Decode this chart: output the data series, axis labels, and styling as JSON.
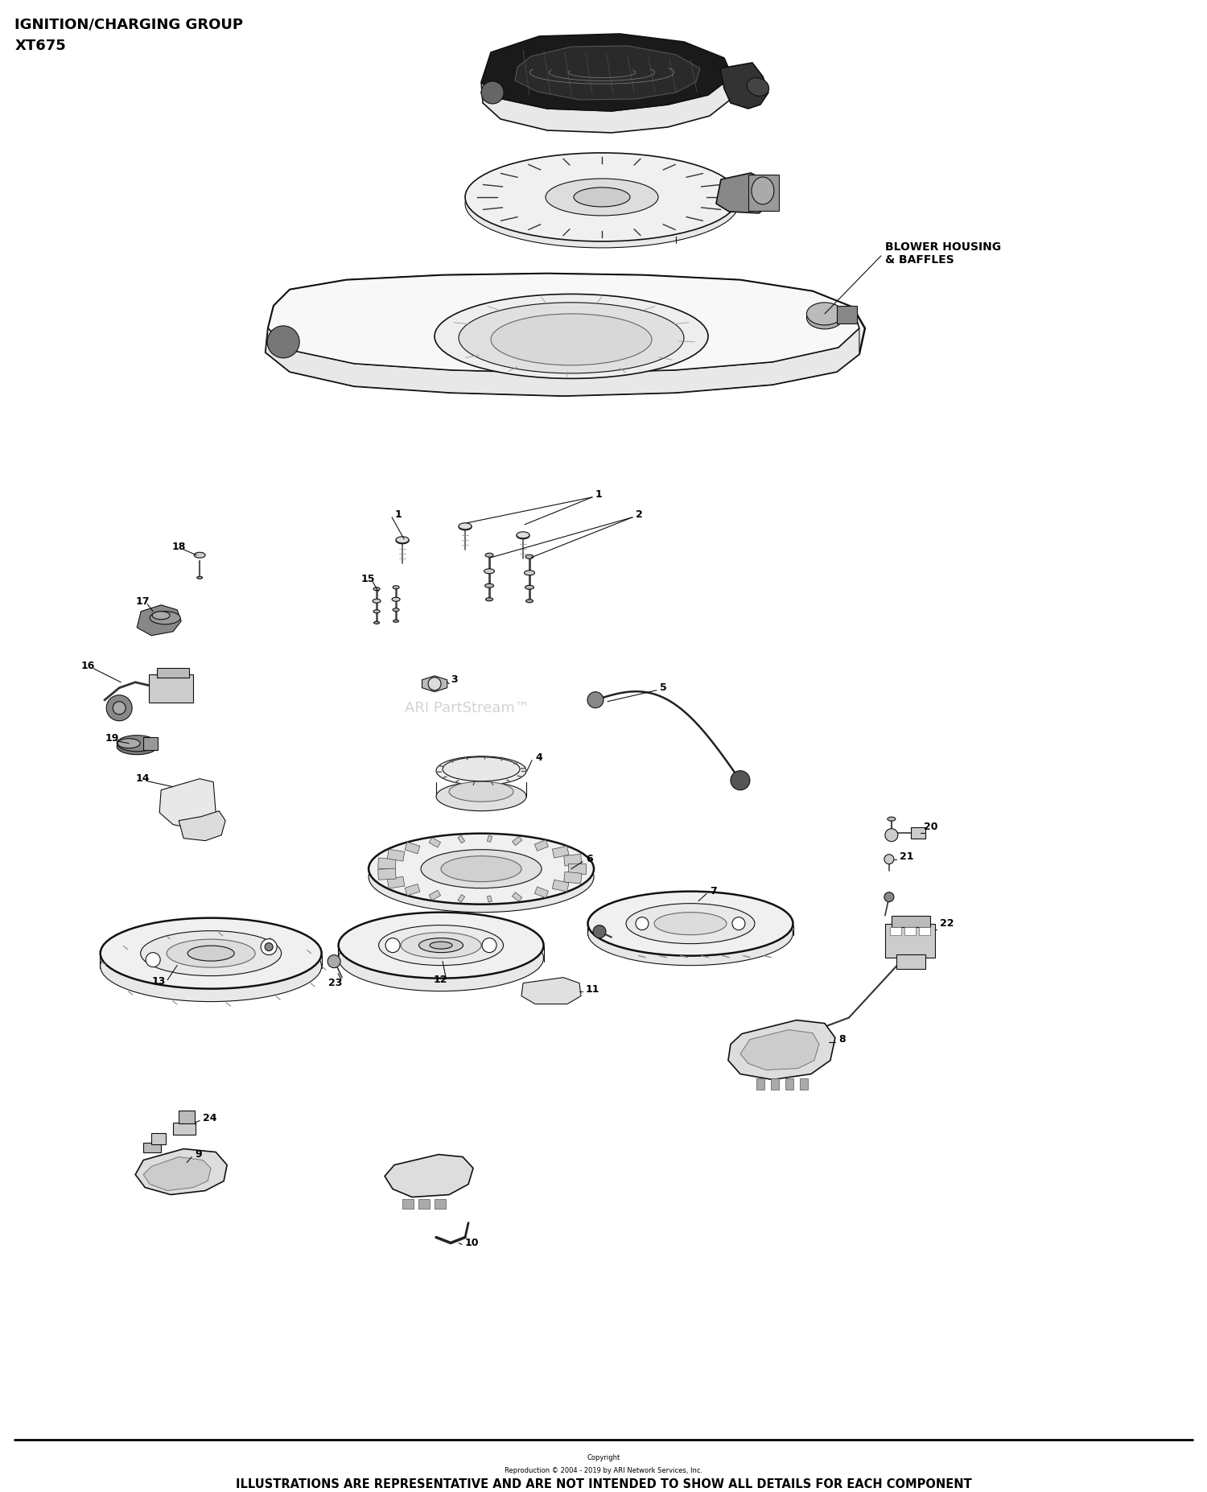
{
  "title_line1": "IGNITION/CHARGING GROUP",
  "title_line2": "XT675",
  "blower_label": "BLOWER HOUSING\n& BAFFLES",
  "watermark": "ARI PartStream™",
  "footer_copyright1": "Copyright",
  "footer_copyright2": "Reproduction © 2004 - 2019 by ARI Network Services, Inc.",
  "footer_text": "ILLUSTRATIONS ARE REPRESENTATIVE AND ARE NOT INTENDED TO SHOW ALL DETAILS FOR EACH COMPONENT",
  "bg_color": "#ffffff",
  "lc": "#111111",
  "lc2": "#444444",
  "gray1": "#cccccc",
  "gray2": "#888888",
  "gray3": "#555555",
  "darkgray": "#222222"
}
